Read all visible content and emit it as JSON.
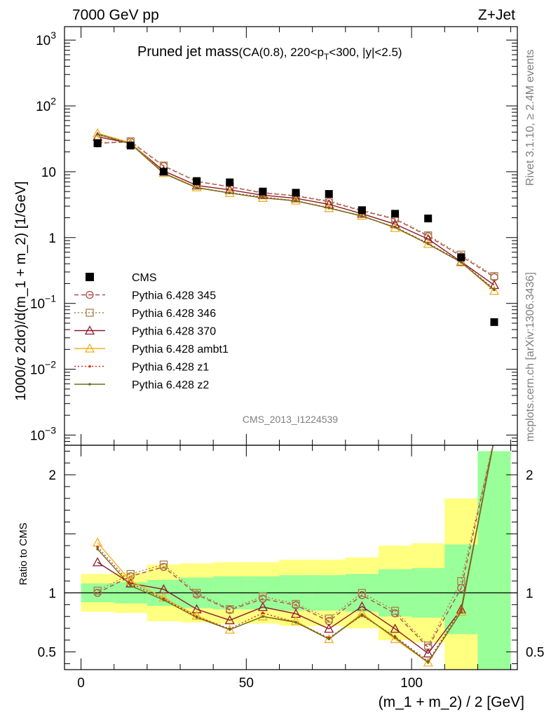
{
  "header": {
    "left": "7000 GeV pp",
    "right": "Z+Jet"
  },
  "side_labels": {
    "rivet": "Rivet 3.1.10, ≥ 2.4M events",
    "mcplots": "mcplots.cern.ch [arXiv:1306.3436]"
  },
  "analysis_id": "CMS_2013_I1224539",
  "title": {
    "main": "Pruned jet mass",
    "sub_prefix": "(CA(0.8), 220<p",
    "sub_sub": "T",
    "sub_suffix": "<300, |y|<2.5)"
  },
  "chart_data": {
    "type": "line",
    "xlabel": "(m_1 + m_2) / 2 [GeV]",
    "xlim": [
      -5,
      132
    ],
    "x_ticks": [
      "0",
      "50",
      "100"
    ],
    "x": [
      5,
      15,
      25,
      35,
      45,
      55,
      65,
      75,
      85,
      95,
      105,
      115,
      125
    ],
    "bin_edges": [
      0,
      10,
      20,
      30,
      40,
      50,
      60,
      70,
      80,
      90,
      100,
      110,
      120,
      130
    ],
    "main": {
      "ylabel": "1000/σ 2dσ)/d(m_1 + m_2) [1/GeV]",
      "yscale": "log",
      "ylim": [
        0.0007,
        1600
      ],
      "y_ticks": [
        {
          "base": "10",
          "exp": "3",
          "v": 1000
        },
        {
          "base": "10",
          "exp": "2",
          "v": 100
        },
        {
          "base": "10",
          "exp": "",
          "v": 10
        },
        {
          "base": "1",
          "exp": "",
          "v": 1
        },
        {
          "base": "10",
          "exp": "−1",
          "v": 0.1
        },
        {
          "base": "10",
          "exp": "−2",
          "v": 0.01
        },
        {
          "base": "10",
          "exp": "−3",
          "v": 0.001
        }
      ]
    },
    "ratio": {
      "ylabel": "Ratio to CMS",
      "ylim": [
        0.35,
        2.25
      ],
      "y_ticks": [
        "0.5",
        "1",
        "2"
      ],
      "y_tick_values": [
        0.5,
        1,
        2
      ],
      "band_green": [
        [
          0.92,
          1.08
        ],
        [
          0.91,
          1.09
        ],
        [
          0.89,
          1.11
        ],
        [
          0.87,
          1.13
        ],
        [
          0.86,
          1.14
        ],
        [
          0.86,
          1.14
        ],
        [
          0.85,
          1.15
        ],
        [
          0.85,
          1.15
        ],
        [
          0.84,
          1.16
        ],
        [
          0.8,
          1.2
        ],
        [
          0.79,
          1.21
        ],
        [
          0.65,
          1.41
        ],
        [
          0.3,
          2.2
        ]
      ],
      "band_yellow": [
        [
          0.84,
          1.16
        ],
        [
          0.83,
          1.17
        ],
        [
          0.76,
          1.24
        ],
        [
          0.75,
          1.25
        ],
        [
          0.74,
          1.26
        ],
        [
          0.74,
          1.26
        ],
        [
          0.72,
          1.28
        ],
        [
          0.72,
          1.28
        ],
        [
          0.7,
          1.3
        ],
        [
          0.6,
          1.4
        ],
        [
          0.58,
          1.42
        ],
        [
          0.3,
          1.8
        ],
        [
          0.3,
          2.2
        ]
      ]
    },
    "cms": {
      "name": "CMS",
      "values": [
        27.0,
        25.0,
        10.0,
        7.2,
        6.9,
        5.0,
        4.8,
        4.6,
        2.6,
        2.3,
        1.95,
        0.5,
        0.052
      ]
    },
    "series": [
      {
        "name": "Pythia 6.428 345",
        "color": "#b04a4a",
        "dash": "6,4",
        "marker": "circle",
        "values": [
          27.0,
          28.5,
          12.2,
          7.1,
          5.9,
          4.75,
          4.3,
          3.5,
          2.55,
          1.9,
          1.05,
          0.52,
          0.25
        ]
      },
      {
        "name": "Pythia 6.428 346",
        "color": "#a88048",
        "dash": "2,3",
        "marker": "square",
        "values": [
          27.5,
          29.0,
          12.4,
          7.2,
          5.95,
          4.85,
          4.35,
          3.6,
          2.6,
          1.95,
          1.08,
          0.55,
          0.26
        ]
      },
      {
        "name": "Pythia 6.428 370",
        "color": "#8b1a2a",
        "dash": "",
        "marker": "triangle",
        "values": [
          34.0,
          27.0,
          10.3,
          6.2,
          5.3,
          4.4,
          3.95,
          3.2,
          2.3,
          1.6,
          0.95,
          0.43,
          0.19
        ]
      },
      {
        "name": "Pythia 6.428 ambt1",
        "color": "#f0b020",
        "dash": "",
        "marker": "triangle",
        "values": [
          38.5,
          27.5,
          9.6,
          5.8,
          4.75,
          4.0,
          3.65,
          2.8,
          2.15,
          1.4,
          0.8,
          0.42,
          0.155
        ]
      },
      {
        "name": "Pythia 6.428 z1",
        "color": "#d42a1a",
        "dash": "2,3",
        "marker": "dot",
        "values": [
          37.5,
          27.0,
          9.5,
          5.75,
          4.8,
          4.15,
          3.6,
          2.85,
          2.1,
          1.45,
          0.82,
          0.43,
          0.165
        ]
      },
      {
        "name": "Pythia 6.428 z2",
        "color": "#6b6b1a",
        "dash": "",
        "marker": "dot",
        "values": [
          37.0,
          26.5,
          9.4,
          5.7,
          4.75,
          4.0,
          3.6,
          2.8,
          2.12,
          1.43,
          0.8,
          0.42,
          0.16
        ]
      }
    ]
  }
}
